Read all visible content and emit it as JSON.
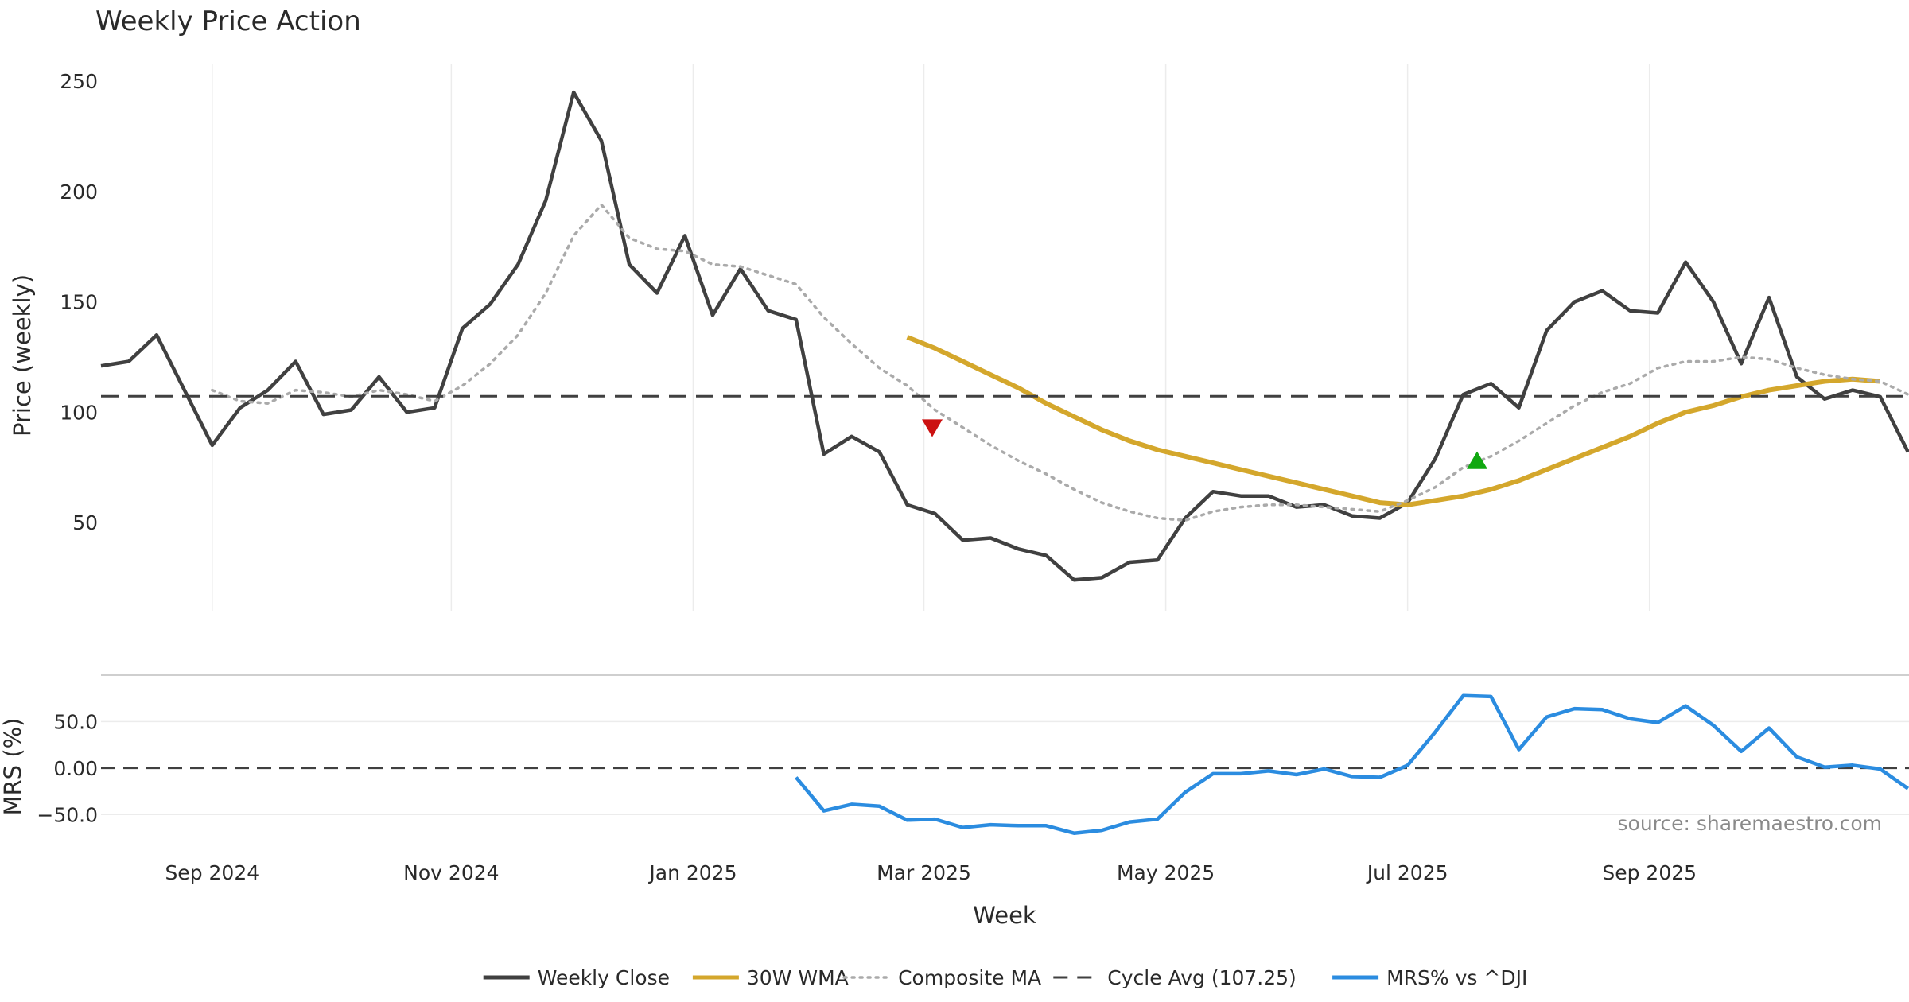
{
  "chart_data": {
    "type": "line",
    "title": "Weekly Price Action",
    "xlabel": "Week",
    "x_tick_labels": [
      "Sep 2024",
      "Nov 2024",
      "Jan 2025",
      "Mar 2025",
      "May 2025",
      "Jul 2025",
      "Sep 2025"
    ],
    "x_tick_weeks": [
      4,
      12.6,
      21.3,
      29.6,
      38.3,
      47,
      55.7
    ],
    "price_panel": {
      "ylabel": "Price (weekly)",
      "ylim": [
        10,
        258
      ],
      "y_ticks": [
        50,
        100,
        150,
        200,
        250
      ],
      "y_tick_labels": [
        "50",
        "100",
        "150",
        "200",
        "250"
      ]
    },
    "mrs_panel": {
      "ylabel": "MRS (%)",
      "ylim": [
        -78,
        100
      ],
      "y_ticks": [
        -50,
        0,
        50
      ],
      "y_tick_labels": [
        "−50.0",
        "0.00",
        "50.0"
      ]
    },
    "series": [
      {
        "name": "Weekly Close",
        "color": "#404040",
        "style": "solid",
        "start_week": 0,
        "values": [
          121,
          123,
          135,
          110,
          85,
          102,
          110,
          123,
          99,
          101,
          116,
          100,
          102,
          138,
          149,
          167,
          196,
          245,
          223,
          167,
          154,
          180,
          144,
          165,
          146,
          142,
          81,
          89,
          82,
          58,
          54,
          42,
          43,
          38,
          35,
          24,
          25,
          32,
          33,
          52,
          64,
          62,
          62,
          57,
          58,
          53,
          52,
          59,
          79,
          108,
          113,
          102,
          137,
          150,
          155,
          146,
          145,
          168,
          150,
          122,
          152,
          116,
          106,
          110,
          107,
          82
        ]
      },
      {
        "name": "30W WMA",
        "color": "#d4a72c",
        "style": "solid",
        "start_week": 29,
        "values": [
          134,
          129,
          123,
          117,
          111,
          104,
          98,
          92,
          87,
          83,
          80,
          77,
          74,
          71,
          68,
          65,
          62,
          59,
          58,
          60,
          62,
          65,
          69,
          74,
          79,
          84,
          89,
          95,
          100,
          103,
          107,
          110,
          112,
          114,
          115,
          114
        ]
      },
      {
        "name": "Composite MA",
        "color": "#aaaaaa",
        "style": "dotted",
        "start_week": 4,
        "values": [
          110,
          105,
          104,
          110,
          109,
          107,
          110,
          108,
          105,
          112,
          122,
          135,
          154,
          180,
          194,
          179,
          174,
          173,
          167,
          166,
          162,
          158,
          143,
          131,
          120,
          112,
          101,
          93,
          85,
          78,
          72,
          65,
          59,
          55,
          52,
          51,
          55,
          57,
          58,
          58,
          57,
          56,
          55,
          60,
          66,
          75,
          80,
          87,
          95,
          103,
          109,
          113,
          120,
          123,
          123,
          125,
          124,
          120,
          117,
          115,
          114,
          108
        ]
      },
      {
        "name": "Cycle Avg (107.25)",
        "color": "#404040",
        "style": "dashed",
        "value": 107.25
      },
      {
        "name": "MRS% vs ^DJI",
        "color": "#2b8ce0",
        "style": "solid",
        "start_week": 25,
        "values": [
          -10,
          -46,
          -39,
          -41,
          -56,
          -55,
          -64,
          -61,
          -62,
          -62,
          -70,
          -67,
          -58,
          -55,
          -26,
          -6,
          -6,
          -3,
          -7,
          -1,
          -9,
          -10,
          3,
          39,
          78,
          77,
          20,
          55,
          64,
          63,
          53,
          49,
          67,
          46,
          18,
          43,
          12,
          1,
          3,
          -1,
          -22
        ]
      }
    ],
    "markers": [
      {
        "type": "sell",
        "shape": "triangle-down",
        "color": "#cc1111",
        "week": 29.9,
        "value": 93
      },
      {
        "type": "buy",
        "shape": "triangle-up",
        "color": "#11a811",
        "week": 49.5,
        "value": 78
      }
    ],
    "annotation": "source: sharemaestro.com",
    "legend_position": "bottom-center",
    "grid": true
  }
}
